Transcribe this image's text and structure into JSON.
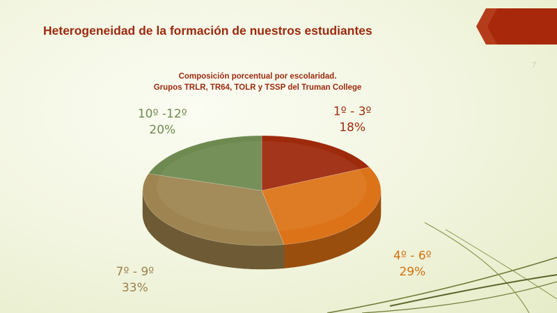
{
  "slide": {
    "title": "Heterogeneidad de la formación de nuestros estudiantes",
    "number": "7"
  },
  "colors": {
    "title": "#9c2a0e",
    "accent_tab": "#a8280c"
  },
  "chart_data": {
    "type": "pie",
    "style": "3d",
    "title_lines": [
      "Composición porcentual por escolaridad.",
      "Grupos TRLR, TR64, TOLR y TSSP del Truman College"
    ],
    "slices": [
      {
        "label": "1º - 3º",
        "value": 18,
        "value_label": "18%",
        "color": "#9e2a0c",
        "side": "#6a1c08",
        "label_color": "#9e2a0c"
      },
      {
        "label": "4º - 6º",
        "value": 29,
        "value_label": "29%",
        "color": "#dc7318",
        "side": "#9a4e0e",
        "label_color": "#d4700e"
      },
      {
        "label": "7º - 9º",
        "value": 33,
        "value_label": "33%",
        "color": "#9e8450",
        "side": "#6e5a34",
        "label_color": "#9b7f4c"
      },
      {
        "label": "10º -12º",
        "value": 20,
        "value_label": "20%",
        "color": "#6e8a50",
        "side": "#4a6034",
        "label_color": "#6e8a50"
      }
    ]
  }
}
